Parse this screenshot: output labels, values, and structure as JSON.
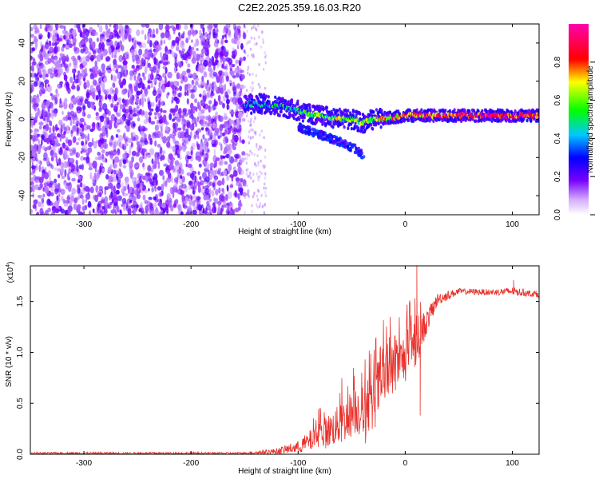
{
  "title": "C2E2.2025.359.16.03.R20",
  "chart_data": [
    {
      "type": "heatmap",
      "name": "spectrogram",
      "xlabel": "Height of straight line (km)",
      "ylabel": "Frequency (Hz)",
      "xlim": [
        -350,
        125
      ],
      "ylim": [
        -50,
        50
      ],
      "xticks": [
        -300,
        -200,
        -100,
        0,
        100
      ],
      "yticks": [
        -40,
        -20,
        0,
        20,
        40
      ],
      "noise_region_x": [
        -350,
        -150
      ],
      "sparse_noise_x": [
        -150,
        -130
      ],
      "signal_trace": [
        {
          "x": -150,
          "f": 8,
          "amp": 0.35
        },
        {
          "x": -130,
          "f": 8,
          "amp": 0.4
        },
        {
          "x": -110,
          "f": 6,
          "amp": 0.45
        },
        {
          "x": -90,
          "f": 3,
          "amp": 0.5
        },
        {
          "x": -70,
          "f": 1,
          "amp": 0.55
        },
        {
          "x": -50,
          "f": 0,
          "amp": 0.6
        },
        {
          "x": -40,
          "f": -2,
          "amp": 0.55
        },
        {
          "x": -30,
          "f": 0,
          "amp": 0.6
        },
        {
          "x": -10,
          "f": 1,
          "amp": 0.7
        },
        {
          "x": 0,
          "f": 2,
          "amp": 0.75
        },
        {
          "x": 20,
          "f": 2,
          "amp": 0.8
        },
        {
          "x": 50,
          "f": 2,
          "amp": 0.85
        },
        {
          "x": 80,
          "f": 2,
          "amp": 0.9
        },
        {
          "x": 100,
          "f": 2,
          "amp": 0.85
        },
        {
          "x": 125,
          "f": 2,
          "amp": 0.85
        }
      ],
      "lower_branch": [
        {
          "x": -100,
          "f": -4
        },
        {
          "x": -80,
          "f": -8
        },
        {
          "x": -60,
          "f": -12
        },
        {
          "x": -45,
          "f": -16
        },
        {
          "x": -38,
          "f": -20
        }
      ],
      "colorbar": {
        "label": "Normalized spectral amplitude",
        "range": [
          0,
          1
        ],
        "ticks": [
          "0.0",
          "0.2",
          "0.4",
          "0.6",
          "0.8"
        ],
        "tick_values": [
          0,
          0.2,
          0.4,
          0.6,
          0.8
        ]
      }
    },
    {
      "type": "line",
      "name": "snr",
      "xlabel": "Height of straight line (km)",
      "ylabel": "SNR (10 * v/v)",
      "exponent_label": "(x10",
      "exponent_sup": "4",
      "exponent_close": ")",
      "xlim": [
        -350,
        125
      ],
      "ylim": [
        0,
        1.85
      ],
      "xticks": [
        -300,
        -200,
        -100,
        0,
        100
      ],
      "yticks": [
        "0.0",
        "0.5",
        "1.0",
        "1.5"
      ],
      "ytick_values": [
        0,
        0.5,
        1.0,
        1.5
      ],
      "color": "#e8302a",
      "envelope": [
        {
          "x": -350,
          "base": 0.01,
          "spread": 0.01
        },
        {
          "x": -150,
          "base": 0.01,
          "spread": 0.01
        },
        {
          "x": -120,
          "base": 0.03,
          "spread": 0.03
        },
        {
          "x": -100,
          "base": 0.07,
          "spread": 0.06
        },
        {
          "x": -80,
          "base": 0.18,
          "spread": 0.14
        },
        {
          "x": -60,
          "base": 0.3,
          "spread": 0.2
        },
        {
          "x": -45,
          "base": 0.45,
          "spread": 0.25
        },
        {
          "x": -35,
          "base": 0.35,
          "spread": 0.3
        },
        {
          "x": -25,
          "base": 0.65,
          "spread": 0.3
        },
        {
          "x": -10,
          "base": 0.85,
          "spread": 0.25
        },
        {
          "x": 0,
          "base": 0.95,
          "spread": 0.25
        },
        {
          "x": 10,
          "base": 1.1,
          "spread": 0.25
        },
        {
          "x": 20,
          "base": 1.3,
          "spread": 0.12
        },
        {
          "x": 30,
          "base": 1.52,
          "spread": 0.06
        },
        {
          "x": 50,
          "base": 1.6,
          "spread": 0.03
        },
        {
          "x": 80,
          "base": 1.59,
          "spread": 0.03
        },
        {
          "x": 100,
          "base": 1.6,
          "spread": 0.04
        },
        {
          "x": 125,
          "base": 1.57,
          "spread": 0.03
        }
      ],
      "spikes": [
        {
          "x": 11,
          "y": 1.85
        },
        {
          "x": 14,
          "y": 0.38
        },
        {
          "x": 101,
          "y": 1.71
        }
      ]
    }
  ]
}
